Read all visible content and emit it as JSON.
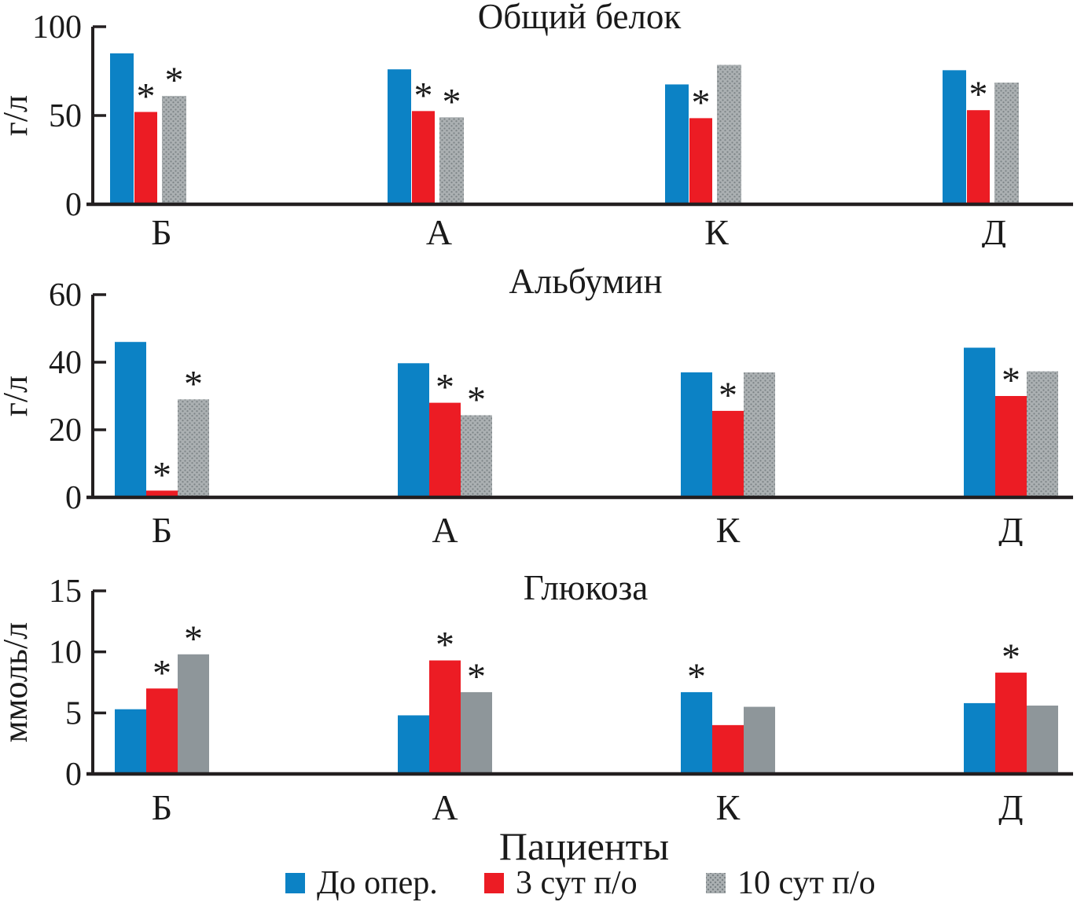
{
  "figure": {
    "xlabel": "Пациенты",
    "asterisk_marker": "*",
    "legend": [
      {
        "label": "До опер.",
        "color": "#0C82C5",
        "texture": "solid"
      },
      {
        "label": "3 сут п/о",
        "color": "#EC1C24",
        "texture": "solid"
      },
      {
        "label": "10 сут п/о",
        "color": "#9AA0A3",
        "texture": "stipple"
      }
    ]
  },
  "colors": {
    "blue": "#0c82c5",
    "red": "#ec1c24",
    "gray_solid": "#8e969a",
    "gray_stipple_base": "#abb0b2",
    "gray_stipple_dot": "#7c8386",
    "axis": "#231f20",
    "text": "#1a1a1a"
  },
  "chart_data": [
    {
      "type": "bar",
      "title": "Общий белок",
      "ylabel": "г/л",
      "xlabel": "",
      "categories": [
        "Б",
        "А",
        "К",
        "Д"
      ],
      "ylim": [
        0,
        100
      ],
      "yticks": [
        0,
        50,
        100
      ],
      "grid": false,
      "legend_position": "bottom-shared",
      "series": [
        {
          "name": "До опер.",
          "values": [
            85,
            76,
            67.5,
            75.5
          ],
          "asterisks": [
            false,
            false,
            false,
            false
          ]
        },
        {
          "name": "3 сут п/о",
          "values": [
            52,
            52.5,
            48.5,
            53
          ],
          "asterisks": [
            true,
            true,
            true,
            true
          ]
        },
        {
          "name": "10 сут п/о",
          "values": [
            61,
            49,
            78.5,
            68.5
          ],
          "asterisks": [
            true,
            true,
            false,
            false
          ]
        }
      ]
    },
    {
      "type": "bar",
      "title": "Альбумин",
      "ylabel": "г/л",
      "xlabel": "",
      "categories": [
        "Б",
        "А",
        "К",
        "Д"
      ],
      "ylim": [
        0,
        60
      ],
      "yticks": [
        0,
        20,
        40,
        60
      ],
      "grid": false,
      "legend_position": "bottom-shared",
      "series": [
        {
          "name": "До опер.",
          "values": [
            46,
            39.7,
            37,
            44.3
          ],
          "asterisks": [
            false,
            false,
            false,
            false
          ]
        },
        {
          "name": "3 сут п/о",
          "values": [
            2,
            28,
            25.6,
            30
          ],
          "asterisks": [
            true,
            true,
            true,
            true
          ]
        },
        {
          "name": "10 сут п/о",
          "values": [
            29,
            24.3,
            37,
            37.3
          ],
          "asterisks": [
            true,
            true,
            false,
            false
          ]
        }
      ]
    },
    {
      "type": "bar",
      "title": "Глюкоза",
      "ylabel": "ммоль/л",
      "xlabel": "Пациенты",
      "categories": [
        "Б",
        "А",
        "К",
        "Д"
      ],
      "ylim": [
        0,
        15
      ],
      "yticks": [
        0,
        5,
        10,
        15
      ],
      "grid": false,
      "legend_position": "bottom-shared",
      "series": [
        {
          "name": "До опер.",
          "values": [
            5.3,
            4.8,
            6.7,
            5.8
          ],
          "asterisks": [
            false,
            false,
            true,
            false
          ]
        },
        {
          "name": "3 сут п/о",
          "values": [
            7,
            9.3,
            4,
            8.3
          ],
          "asterisks": [
            true,
            true,
            false,
            true
          ]
        },
        {
          "name": "10 сут п/о",
          "values": [
            9.8,
            6.7,
            5.5,
            5.6
          ],
          "asterisks": [
            true,
            true,
            false,
            false
          ]
        }
      ]
    }
  ]
}
